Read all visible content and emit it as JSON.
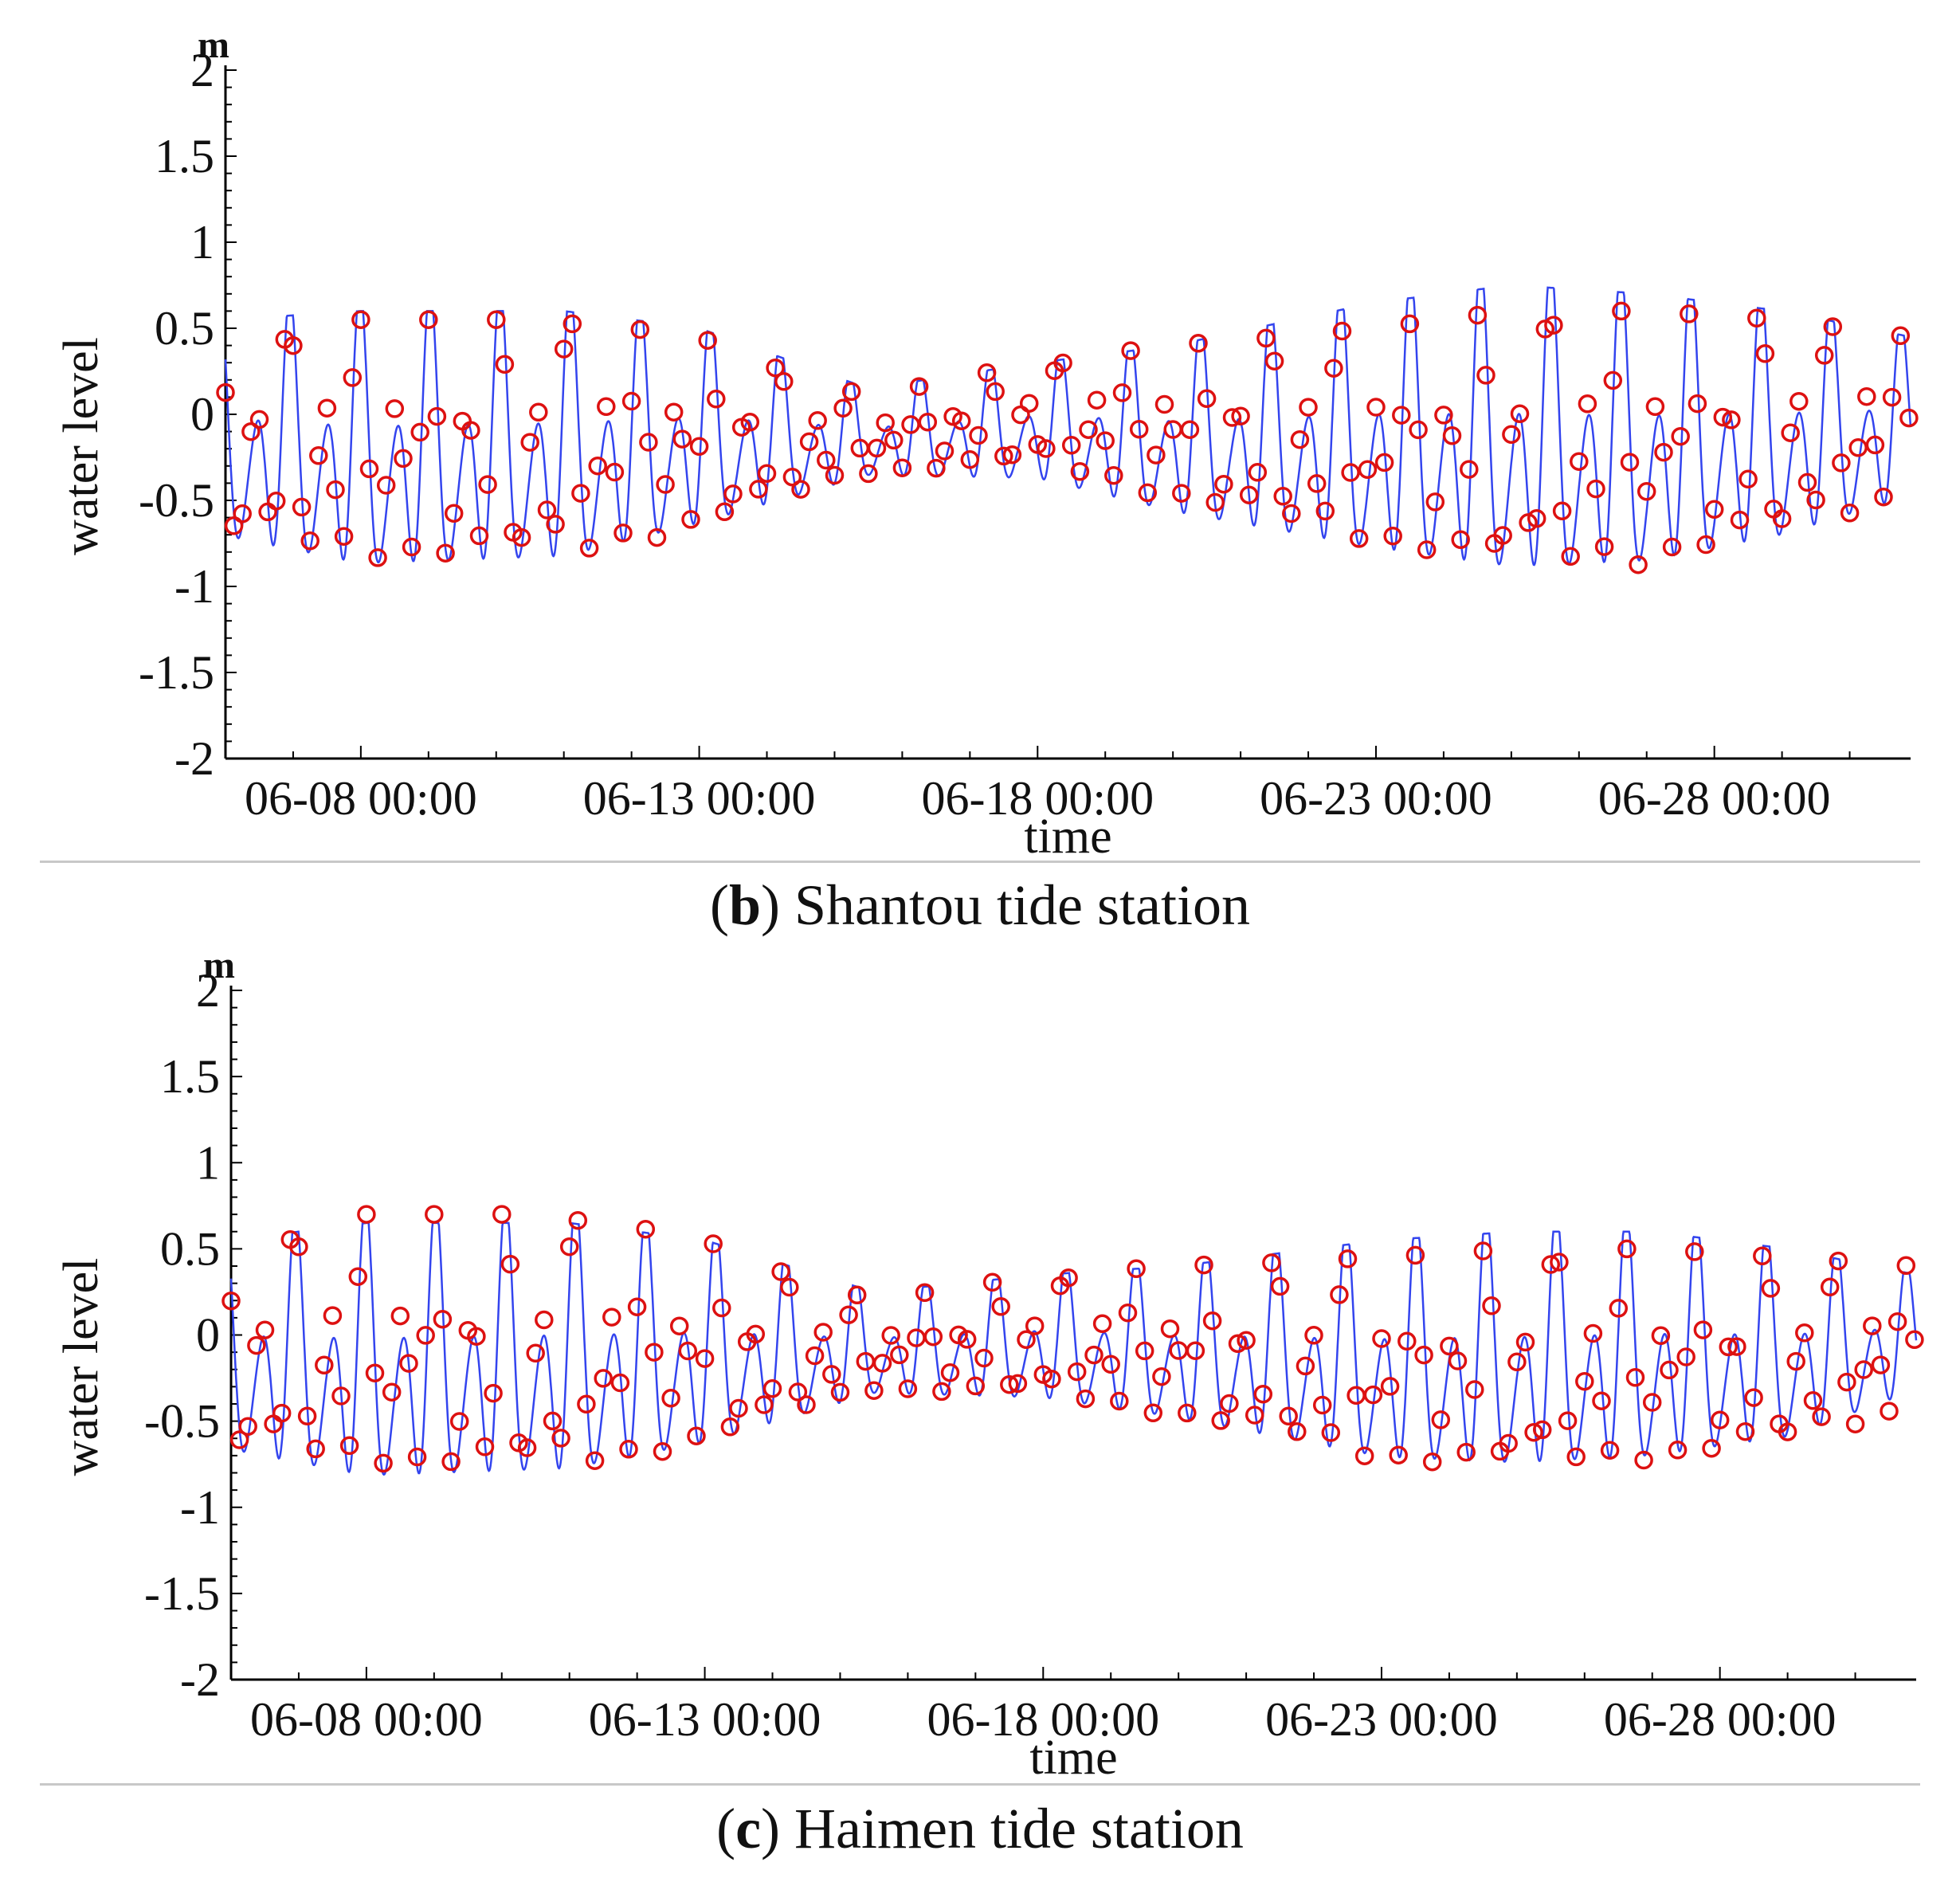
{
  "chart_data": [
    {
      "type": "line",
      "panel_letter": "b",
      "caption_text": " Shantou tide station",
      "unit": "m",
      "xlabel": "time",
      "ylabel": "water level",
      "ylim": [
        -2,
        2
      ],
      "yticks": [
        "2",
        "1.5",
        "1",
        "0.5",
        "0",
        "-0.5",
        "-1",
        "-1.5",
        "-2"
      ],
      "xlim": [
        -2,
        22.9
      ],
      "xticks": [
        {
          "day": 0,
          "label": "06-08 00:00"
        },
        {
          "day": 5,
          "label": "06-13 00:00"
        },
        {
          "day": 10,
          "label": "06-18 00:00"
        },
        {
          "day": 15,
          "label": "06-23 00:00"
        },
        {
          "day": 20,
          "label": "06-28 00:00"
        }
      ],
      "series": [
        {
          "kind": "line",
          "color": "#3344ee",
          "envelope": [
            [
              -2,
              0.55,
              -0.95
            ],
            [
              0,
              0.6,
              -1.15
            ],
            [
              3,
              0.6,
              -1.1
            ],
            [
              5,
              0.5,
              -0.85
            ],
            [
              7.5,
              0.15,
              -0.45
            ],
            [
              10,
              0.3,
              -0.5
            ],
            [
              12,
              0.4,
              -0.75
            ],
            [
              15,
              0.65,
              -1.05
            ],
            [
              17,
              0.75,
              -1.2
            ],
            [
              19,
              0.7,
              -1.15
            ],
            [
              21,
              0.6,
              -0.95
            ],
            [
              22.9,
              0.45,
              -0.65
            ]
          ],
          "modulation": 0.6,
          "diurnal": 0.3
        },
        {
          "kind": "scatter",
          "color": "#dd1111",
          "marker": "circle",
          "envelope": [
            [
              -2,
              0.45,
              -0.85
            ],
            [
              0,
              0.55,
              -1.0
            ],
            [
              3,
              0.55,
              -1.0
            ],
            [
              5,
              0.45,
              -0.8
            ],
            [
              7.5,
              0.1,
              -0.4
            ],
            [
              10,
              0.3,
              -0.35
            ],
            [
              12,
              0.4,
              -0.6
            ],
            [
              15,
              0.5,
              -0.9
            ],
            [
              17,
              0.6,
              -1.05
            ],
            [
              19,
              0.6,
              -1.05
            ],
            [
              21,
              0.55,
              -0.85
            ],
            [
              22.9,
              0.45,
              -0.6
            ]
          ],
          "modulation": 0.45,
          "diurnal": 0.3,
          "step_hours": 3
        }
      ]
    },
    {
      "type": "line",
      "panel_letter": "c",
      "caption_text": " Haimen tide station",
      "unit": "m",
      "xlabel": "time",
      "ylabel": "water level",
      "ylim": [
        -2,
        2
      ],
      "yticks": [
        "2",
        "1.5",
        "1",
        "0.5",
        "0",
        "-0.5",
        "-1",
        "-1.5",
        "-2"
      ],
      "xlim": [
        -2,
        22.9
      ],
      "xticks": [
        {
          "day": 0,
          "label": "06-08 00:00"
        },
        {
          "day": 5,
          "label": "06-13 00:00"
        },
        {
          "day": 10,
          "label": "06-18 00:00"
        },
        {
          "day": 15,
          "label": "06-23 00:00"
        },
        {
          "day": 20,
          "label": "06-28 00:00"
        }
      ],
      "series": [
        {
          "kind": "line",
          "color": "#3344ee",
          "envelope": [
            [
              -2,
              0.55,
              -0.9
            ],
            [
              0,
              0.65,
              -1.1
            ],
            [
              3,
              0.65,
              -1.05
            ],
            [
              5,
              0.55,
              -0.85
            ],
            [
              7.5,
              0.25,
              -0.45
            ],
            [
              10,
              0.35,
              -0.5
            ],
            [
              12,
              0.4,
              -0.65
            ],
            [
              15,
              0.55,
              -0.95
            ],
            [
              17,
              0.6,
              -1.0
            ],
            [
              19,
              0.6,
              -0.95
            ],
            [
              21,
              0.5,
              -0.8
            ],
            [
              22.9,
              0.35,
              -0.45
            ]
          ],
          "modulation": 0.6,
          "diurnal": 0.3
        },
        {
          "kind": "scatter",
          "color": "#dd1111",
          "marker": "circle",
          "envelope": [
            [
              -2,
              0.55,
              -0.85
            ],
            [
              0,
              0.7,
              -0.95
            ],
            [
              3,
              0.7,
              -1.0
            ],
            [
              5,
              0.55,
              -0.8
            ],
            [
              7.5,
              0.2,
              -0.4
            ],
            [
              10,
              0.35,
              -0.45
            ],
            [
              12,
              0.4,
              -0.6
            ],
            [
              15,
              0.45,
              -0.9
            ],
            [
              17,
              0.5,
              -0.95
            ],
            [
              19,
              0.5,
              -0.9
            ],
            [
              21,
              0.45,
              -0.8
            ],
            [
              22.9,
              0.4,
              -0.55
            ]
          ],
          "modulation": 0.5,
          "diurnal": 0.3,
          "step_hours": 3
        }
      ]
    }
  ]
}
